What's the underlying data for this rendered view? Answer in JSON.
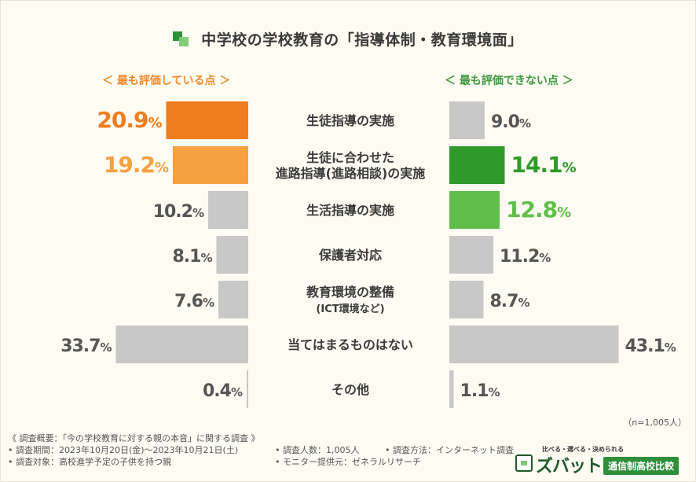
{
  "title": "中学校の学校教育の「指導体制・教育環境面」",
  "left_header": "＜ 最も評価している点 ＞",
  "right_header": "＜ 最も評価できない点 ＞",
  "sample_size": "（n=1,005人）",
  "colors": {
    "gray": "#c8c8c8",
    "orange_dark": "#f07d1f",
    "orange_light": "#f5a142",
    "green_dark": "#2f9a2a",
    "green_light": "#5fbf4a"
  },
  "chart_data": {
    "type": "bar",
    "title": "中学校の学校教育の「指導体制・教育環境面」",
    "categories": [
      [
        "生徒指導の実施"
      ],
      [
        "生徒に合わせた",
        "進路指導(進路相談)の実施"
      ],
      [
        "生活指導の実施"
      ],
      [
        "保護者対応"
      ],
      [
        "教育環境の整備",
        "(ICT環境など)"
      ],
      [
        "当てはまるものはない"
      ],
      [
        "その他"
      ]
    ],
    "xlim": [
      0,
      45
    ],
    "unit": "%",
    "series": [
      {
        "name": "最も評価している点",
        "values": [
          20.9,
          19.2,
          10.2,
          8.1,
          7.6,
          33.7,
          0.4
        ],
        "highlight": [
          "orange_dark",
          "orange_light",
          null,
          null,
          null,
          null,
          null
        ]
      },
      {
        "name": "最も評価できない点",
        "values": [
          9.0,
          14.1,
          12.8,
          11.2,
          8.7,
          43.1,
          1.1
        ],
        "highlight": [
          null,
          "green_dark",
          "green_light",
          null,
          null,
          null,
          null
        ]
      }
    ]
  },
  "footer": {
    "survey": "《 調査概要：「今の学校教育に対する親の本音」に関する調査 》",
    "period": "• 調査期間：2023年10月20日(金)～2023年10月21日(土)",
    "count": "• 調査人数：1,005人",
    "method": "• 調査方法：インターネット調査",
    "target": "• 調査対象：高校進学予定の子供を持つ親",
    "provider": "• モニター提供元：ゼネラルリサーチ"
  },
  "logo": {
    "tagline": "比べる・選べる・決められる",
    "name": "ズバット",
    "badge": "通信制高校比較"
  }
}
